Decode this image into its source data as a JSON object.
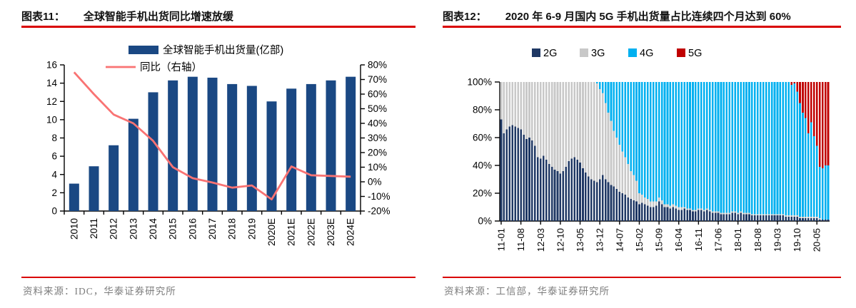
{
  "colors": {
    "accent_rule_red": "#d90000",
    "bar_blue": "#1a4883",
    "line_salmon": "#f97373",
    "g2_navy": "#1f3864",
    "g3_gray": "#c8c8c8",
    "g4_cyan": "#00b0f0",
    "g5_red": "#c00000",
    "axis_black": "#000000",
    "source_gray": "#7d7d7d"
  },
  "fig11": {
    "label": "图表11：",
    "title": "全球智能手机出货同比增速放缓",
    "source": "资料来源：IDC，华泰证券研究所"
  },
  "fig12": {
    "label": "图表12：",
    "title": "2020 年 6-9 月国内 5G 手机出货量占比连续四个月达到 60%",
    "source": "资料来源：工信部，华泰证券研究所"
  },
  "chart_data": [
    {
      "type": "bar",
      "title": "",
      "categories": [
        "2010",
        "2011",
        "2012",
        "2013",
        "2014",
        "2015",
        "2016",
        "2017",
        "2018",
        "2019",
        "2020E",
        "2021E",
        "2022E",
        "2023E",
        "2024E"
      ],
      "series": [
        {
          "name": "全球智能手机出货量(亿部)",
          "type": "bar",
          "axis": "left",
          "color": "#1a4883",
          "values": [
            3.0,
            4.9,
            7.2,
            10.1,
            13.0,
            14.3,
            14.7,
            14.6,
            13.9,
            13.7,
            12.0,
            13.4,
            13.9,
            14.3,
            14.7
          ]
        },
        {
          "name": "同比（右轴）",
          "type": "line",
          "axis": "right",
          "color": "#f97373",
          "values": [
            75,
            60,
            46,
            40,
            28,
            10,
            2.5,
            -0.5,
            -4,
            -2.5,
            -12,
            10.5,
            4.5,
            4,
            3.5
          ]
        }
      ],
      "left_axis": {
        "min": 0,
        "max": 16,
        "step": 2,
        "tick_labels": [
          "0",
          "2",
          "4",
          "6",
          "8",
          "10",
          "12",
          "14",
          "16"
        ]
      },
      "right_axis": {
        "min": -20,
        "max": 80,
        "step": 10,
        "tick_labels": [
          "-20%",
          "-10%",
          "0%",
          "10%",
          "20%",
          "30%",
          "40%",
          "50%",
          "60%",
          "70%",
          "80%"
        ]
      },
      "legend_position": "top",
      "grid": false
    },
    {
      "type": "bar",
      "subtype": "stacked-100-percent",
      "title": "",
      "x": [
        "11-01",
        "11-02",
        "11-03",
        "11-04",
        "11-05",
        "11-06",
        "11-07",
        "11-08",
        "11-09",
        "11-10",
        "11-11",
        "11-12",
        "12-01",
        "12-02",
        "12-03",
        "12-04",
        "12-05",
        "12-06",
        "12-07",
        "12-08",
        "12-09",
        "12-10",
        "12-11",
        "12-12",
        "13-01",
        "13-02",
        "13-03",
        "13-04",
        "13-05",
        "13-06",
        "13-07",
        "13-08",
        "13-09",
        "13-10",
        "13-11",
        "13-12",
        "14-01",
        "14-02",
        "14-03",
        "14-04",
        "14-05",
        "14-06",
        "14-07",
        "14-08",
        "14-09",
        "14-10",
        "14-11",
        "14-12",
        "15-01",
        "15-02",
        "15-03",
        "15-04",
        "15-05",
        "15-06",
        "15-07",
        "15-08",
        "15-09",
        "15-10",
        "15-11",
        "15-12",
        "16-01",
        "16-02",
        "16-03",
        "16-04",
        "16-05",
        "16-06",
        "16-07",
        "16-08",
        "16-09",
        "16-10",
        "16-11",
        "16-12",
        "17-01",
        "17-02",
        "17-03",
        "17-04",
        "17-05",
        "17-06",
        "17-07",
        "17-08",
        "17-09",
        "17-10",
        "17-11",
        "17-12",
        "18-01",
        "18-02",
        "18-03",
        "18-04",
        "18-05",
        "18-06",
        "18-07",
        "18-08",
        "18-09",
        "18-10",
        "18-11",
        "18-12",
        "19-01",
        "19-02",
        "19-03",
        "19-04",
        "19-05",
        "19-06",
        "19-07",
        "19-08",
        "19-09",
        "19-10",
        "19-11",
        "19-12",
        "20-01",
        "20-02",
        "20-03",
        "20-04",
        "20-05",
        "20-06",
        "20-07",
        "20-08",
        "20-09"
      ],
      "x_tick_labels": [
        "11-01",
        "11-08",
        "12-03",
        "12-10",
        "13-05",
        "13-12",
        "14-07",
        "15-02",
        "15-09",
        "16-04",
        "16-11",
        "17-06",
        "18-01",
        "18-08",
        "19-03",
        "19-10",
        "20-05"
      ],
      "x_tick_every": 7,
      "series": [
        {
          "name": "2G",
          "color": "#1f3864",
          "values": [
            73,
            63,
            66,
            68,
            69,
            68,
            67,
            66,
            62,
            59,
            60,
            58,
            54,
            46,
            45,
            47,
            44,
            41,
            39,
            37,
            36,
            34,
            36,
            39,
            43,
            45,
            46,
            44,
            42,
            38,
            35,
            32,
            30,
            29,
            28,
            30,
            33,
            30,
            28,
            26,
            25,
            23,
            21,
            20,
            19,
            17,
            16,
            15,
            14,
            12,
            13,
            12,
            11,
            10,
            10,
            11,
            14,
            12,
            10,
            10,
            9,
            10,
            9,
            8,
            8,
            9,
            8,
            8,
            7,
            7,
            8,
            8,
            7,
            8,
            7,
            6,
            6,
            6,
            5,
            5,
            5,
            5,
            6,
            6,
            5,
            6,
            5,
            5,
            5,
            4,
            4,
            4,
            4,
            4,
            4,
            4,
            4,
            4,
            4,
            4,
            4,
            3,
            3,
            3,
            3,
            3,
            2,
            2,
            2,
            2,
            2,
            2,
            2,
            1,
            1,
            1,
            1
          ]
        },
        {
          "name": "3G",
          "color": "#c8c8c8",
          "values": [
            27,
            37,
            34,
            32,
            31,
            32,
            33,
            34,
            38,
            41,
            40,
            42,
            46,
            54,
            55,
            53,
            56,
            59,
            61,
            63,
            64,
            66,
            64,
            61,
            57,
            55,
            54,
            56,
            58,
            62,
            65,
            68,
            70,
            71,
            71,
            65,
            59,
            55,
            50,
            46,
            40,
            37,
            34,
            30,
            27,
            24,
            20,
            18,
            15,
            8,
            6,
            5,
            5,
            4,
            4,
            3,
            3,
            3,
            2,
            2,
            2,
            2,
            2,
            2,
            2,
            1,
            1,
            1,
            1,
            1,
            1,
            1,
            1,
            1,
            1,
            1,
            1,
            1,
            1,
            1,
            1,
            1,
            1,
            1,
            1,
            1,
            1,
            1,
            1,
            1,
            1,
            1,
            1,
            1,
            1,
            1,
            1,
            1,
            1,
            1,
            1,
            1,
            1,
            1,
            1,
            1,
            1,
            1,
            1,
            1,
            1,
            1,
            1,
            1,
            0,
            0,
            0
          ]
        },
        {
          "name": "4G",
          "color": "#00b0f0",
          "values": [
            0,
            0,
            0,
            0,
            0,
            0,
            0,
            0,
            0,
            0,
            0,
            0,
            0,
            0,
            0,
            0,
            0,
            0,
            0,
            0,
            0,
            0,
            0,
            0,
            0,
            0,
            0,
            0,
            0,
            0,
            0,
            0,
            0,
            0,
            1,
            5,
            8,
            15,
            22,
            28,
            35,
            40,
            45,
            50,
            54,
            59,
            64,
            67,
            71,
            80,
            81,
            83,
            84,
            86,
            86,
            86,
            83,
            85,
            88,
            88,
            89,
            88,
            89,
            90,
            90,
            90,
            91,
            91,
            92,
            92,
            91,
            91,
            92,
            91,
            92,
            93,
            93,
            93,
            94,
            94,
            94,
            94,
            93,
            93,
            94,
            93,
            94,
            94,
            94,
            95,
            95,
            95,
            95,
            95,
            95,
            95,
            95,
            95,
            95,
            95,
            95,
            96,
            96,
            94,
            95,
            89,
            82,
            75,
            71,
            60,
            68,
            58,
            51,
            37,
            37,
            39,
            39
          ]
        },
        {
          "name": "5G",
          "color": "#c00000",
          "values": [
            0,
            0,
            0,
            0,
            0,
            0,
            0,
            0,
            0,
            0,
            0,
            0,
            0,
            0,
            0,
            0,
            0,
            0,
            0,
            0,
            0,
            0,
            0,
            0,
            0,
            0,
            0,
            0,
            0,
            0,
            0,
            0,
            0,
            0,
            0,
            0,
            0,
            0,
            0,
            0,
            0,
            0,
            0,
            0,
            0,
            0,
            0,
            0,
            0,
            0,
            0,
            0,
            0,
            0,
            0,
            0,
            0,
            0,
            0,
            0,
            0,
            0,
            0,
            0,
            0,
            0,
            0,
            0,
            0,
            0,
            0,
            0,
            0,
            0,
            0,
            0,
            0,
            0,
            0,
            0,
            0,
            0,
            0,
            0,
            0,
            0,
            0,
            0,
            0,
            0,
            0,
            0,
            0,
            0,
            0,
            0,
            0,
            0,
            0,
            0,
            0,
            0,
            0,
            2,
            1,
            7,
            15,
            22,
            26,
            37,
            29,
            39,
            46,
            61,
            62,
            60,
            60
          ]
        }
      ],
      "y_axis": {
        "min": 0,
        "max": 100,
        "step": 20,
        "tick_labels": [
          "0%",
          "20%",
          "40%",
          "60%",
          "80%",
          "100%"
        ]
      },
      "legend_position": "top",
      "grid": false
    }
  ]
}
